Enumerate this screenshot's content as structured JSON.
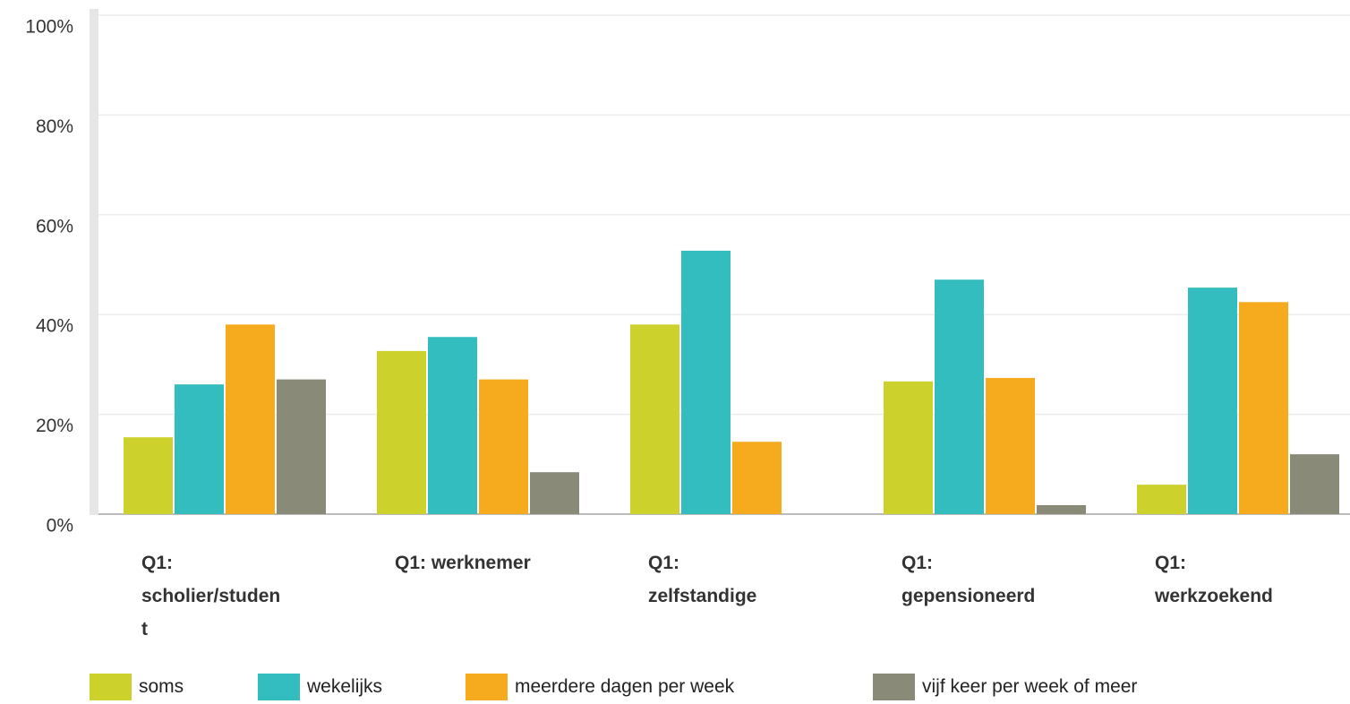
{
  "chart_data": {
    "type": "bar",
    "categories": [
      "Q1: scholier/student",
      "Q1: werknemer",
      "Q1: zelfstandige",
      "Q1: gepensioneerd",
      "Q1: werkzoekend"
    ],
    "series": [
      {
        "name": "soms",
        "color": "#ccd22b",
        "values": [
          15.4,
          32.7,
          38,
          26.6,
          5.9
        ]
      },
      {
        "name": "wekelijks",
        "color": "#33bdbf",
        "values": [
          26,
          35.5,
          52.8,
          47,
          45.4
        ]
      },
      {
        "name": "meerdere dagen per week",
        "color": "#f6ab1f",
        "values": [
          38,
          27,
          14.5,
          27.3,
          42.5
        ]
      },
      {
        "name": "vijf keer per week of meer",
        "color": "#8a8a78",
        "values": [
          27,
          8.4,
          0,
          1.8,
          12
        ]
      }
    ],
    "ylim": [
      0,
      100
    ],
    "yticks": [
      {
        "value": 0,
        "label": "0%"
      },
      {
        "value": 20,
        "label": "20%"
      },
      {
        "value": 40,
        "label": "40%"
      },
      {
        "value": 60,
        "label": "60%"
      },
      {
        "value": 80,
        "label": "80%"
      },
      {
        "value": 100,
        "label": "100%"
      }
    ],
    "grid": true
  }
}
